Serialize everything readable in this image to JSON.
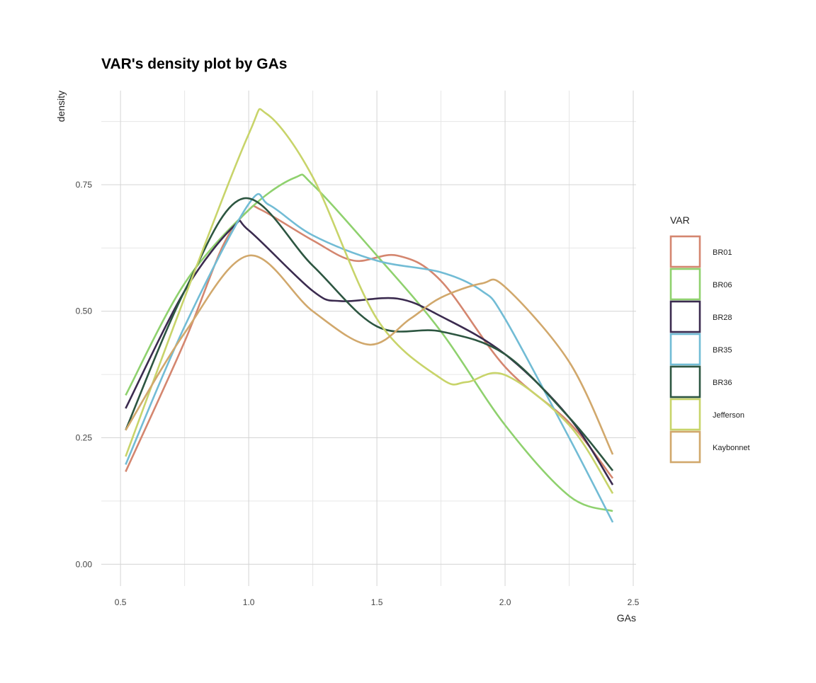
{
  "chart_data": {
    "type": "line",
    "title": "VAR's density plot by GAs",
    "xlabel": "GAs",
    "ylabel": "density",
    "xlim": [
      0.425,
      2.511
    ],
    "ylim": [
      -0.043,
      0.936
    ],
    "x_ticks": [
      0.5,
      1.0,
      1.5,
      2.0,
      2.5
    ],
    "x_tick_labels": [
      "0.5",
      "1.0",
      "1.5",
      "2.0",
      "2.5"
    ],
    "y_ticks": [
      0,
      0.25,
      0.5,
      0.75
    ],
    "y_tick_labels": [
      "0.00",
      "0.25",
      "0.50",
      "0.75"
    ],
    "grid": true,
    "legend": {
      "title": "VAR",
      "placement": "right"
    },
    "series": [
      {
        "name": "BR01",
        "color": "#d4866f",
        "points": [
          [
            0.52,
            0.183
          ],
          [
            0.75,
            0.44
          ],
          [
            0.9,
            0.63
          ],
          [
            1.0,
            0.7
          ],
          [
            1.05,
            0.7
          ],
          [
            1.25,
            0.64
          ],
          [
            1.41,
            0.6
          ],
          [
            1.58,
            0.61
          ],
          [
            1.75,
            0.56
          ],
          [
            2.0,
            0.39
          ],
          [
            2.25,
            0.28
          ],
          [
            2.42,
            0.17
          ]
        ]
      },
      {
        "name": "BR06",
        "color": "#8fd16e",
        "points": [
          [
            0.52,
            0.334
          ],
          [
            0.75,
            0.555
          ],
          [
            1.0,
            0.7
          ],
          [
            1.18,
            0.764
          ],
          [
            1.25,
            0.75
          ],
          [
            1.5,
            0.61
          ],
          [
            1.75,
            0.46
          ],
          [
            2.0,
            0.275
          ],
          [
            2.25,
            0.135
          ],
          [
            2.42,
            0.105
          ]
        ]
      },
      {
        "name": "BR28",
        "color": "#3b2b4f",
        "points": [
          [
            0.52,
            0.308
          ],
          [
            0.75,
            0.54
          ],
          [
            0.94,
            0.667
          ],
          [
            1.0,
            0.66
          ],
          [
            1.25,
            0.54
          ],
          [
            1.36,
            0.52
          ],
          [
            1.58,
            0.525
          ],
          [
            1.75,
            0.49
          ],
          [
            2.0,
            0.415
          ],
          [
            2.25,
            0.29
          ],
          [
            2.42,
            0.157
          ]
        ]
      },
      {
        "name": "BR35",
        "color": "#72bcd5",
        "points": [
          [
            0.52,
            0.197
          ],
          [
            0.75,
            0.47
          ],
          [
            1.0,
            0.712
          ],
          [
            1.08,
            0.71
          ],
          [
            1.25,
            0.65
          ],
          [
            1.5,
            0.6
          ],
          [
            1.75,
            0.577
          ],
          [
            1.91,
            0.54
          ],
          [
            2.0,
            0.485
          ],
          [
            2.25,
            0.25
          ],
          [
            2.42,
            0.083
          ]
        ]
      },
      {
        "name": "BR36",
        "color": "#2d5641",
        "points": [
          [
            0.52,
            0.265
          ],
          [
            0.75,
            0.54
          ],
          [
            0.98,
            0.723
          ],
          [
            1.25,
            0.59
          ],
          [
            1.5,
            0.47
          ],
          [
            1.75,
            0.46
          ],
          [
            2.0,
            0.415
          ],
          [
            2.25,
            0.29
          ],
          [
            2.42,
            0.185
          ]
        ]
      },
      {
        "name": "Jefferson",
        "color": "#c8d46a",
        "points": [
          [
            0.52,
            0.213
          ],
          [
            0.75,
            0.527
          ],
          [
            1.0,
            0.85
          ],
          [
            1.07,
            0.89
          ],
          [
            1.25,
            0.765
          ],
          [
            1.5,
            0.485
          ],
          [
            1.75,
            0.367
          ],
          [
            1.85,
            0.36
          ],
          [
            2.0,
            0.374
          ],
          [
            2.25,
            0.275
          ],
          [
            2.42,
            0.14
          ]
        ]
      },
      {
        "name": "Kaybonnet",
        "color": "#d1a86c",
        "points": [
          [
            0.52,
            0.265
          ],
          [
            0.75,
            0.457
          ],
          [
            1.0,
            0.61
          ],
          [
            1.25,
            0.5
          ],
          [
            1.47,
            0.434
          ],
          [
            1.63,
            0.485
          ],
          [
            1.75,
            0.527
          ],
          [
            1.91,
            0.555
          ],
          [
            2.0,
            0.548
          ],
          [
            2.25,
            0.4
          ],
          [
            2.42,
            0.217
          ]
        ]
      }
    ]
  }
}
